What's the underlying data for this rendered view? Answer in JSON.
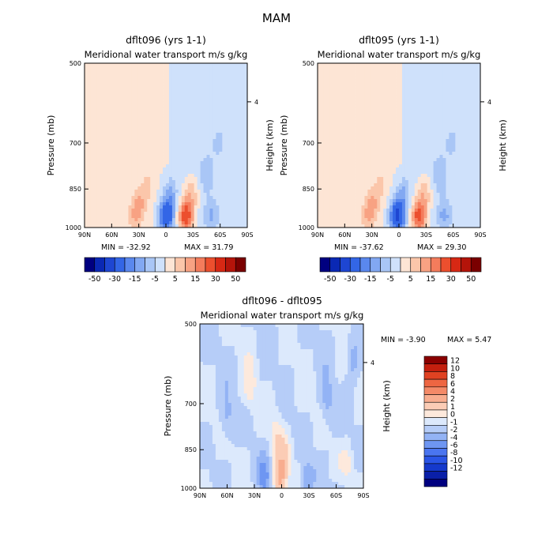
{
  "figure_title": "MAM",
  "colors": {
    "top_scale": [
      "#000080",
      "#0a28b4",
      "#1e46d2",
      "#3366e6",
      "#5a88ee",
      "#82a8f2",
      "#a9c6f6",
      "#cfe1fb",
      "#fde5d5",
      "#fbc6aa",
      "#f8a283",
      "#f47c5c",
      "#ec4f2e",
      "#d72814",
      "#b4140a",
      "#7a0000"
    ],
    "diff_scale": [
      "#000080",
      "#0a1fa8",
      "#1539cc",
      "#2a55e6",
      "#4a75f0",
      "#6e96f2",
      "#93b3f5",
      "#b6cdf8",
      "#dce9fc",
      "#fde9dc",
      "#fbccb5",
      "#f8ad8f",
      "#f48a68",
      "#ee6642",
      "#e04222",
      "#c41f0e",
      "#8a0000"
    ]
  },
  "chart_data": [
    {
      "type": "heatmap",
      "title": "dflt096 (yrs 1-1)",
      "subtitle": "Meridional water transport m/s g/kg",
      "xlabel": "",
      "ylabel": "Pressure (mb)",
      "ylabel_right": "Height (km)",
      "x_ticks": [
        "90N",
        "60N",
        "30N",
        "0",
        "30S",
        "60S",
        "90S"
      ],
      "y_ticks": [
        "500",
        "700",
        "850",
        "1000"
      ],
      "y_right_ticks": [
        "4"
      ],
      "min_label": "MIN = -32.92",
      "max_label": "MAX = 31.79",
      "colorbar": [
        "-50",
        "-30",
        "-15",
        "-5",
        "5",
        "15",
        "30",
        "50"
      ],
      "features": [
        {
          "lat": 34,
          "p": 950,
          "value": 10
        },
        {
          "lat": 28,
          "p": 900,
          "value": 8
        },
        {
          "lat": 20,
          "p": 830,
          "value": 5
        },
        {
          "lat": 0,
          "p": 955,
          "value": -30
        },
        {
          "lat": -4,
          "p": 870,
          "value": -10
        },
        {
          "lat": -22,
          "p": 955,
          "value": 28
        },
        {
          "lat": -28,
          "p": 870,
          "value": 10
        },
        {
          "lat": -45,
          "p": 800,
          "value": -8
        },
        {
          "lat": -50,
          "p": 950,
          "value": -9
        },
        {
          "lat": -58,
          "p": 700,
          "value": -4
        },
        {
          "lat": -80,
          "p": 960,
          "value": 2
        }
      ]
    },
    {
      "type": "heatmap",
      "title": "dflt095 (yrs 1-1)",
      "subtitle": "Meridional water transport m/s g/kg",
      "xlabel": "",
      "ylabel": "Pressure (mb)",
      "ylabel_right": "Height (km)",
      "x_ticks": [
        "90N",
        "60N",
        "30N",
        "0",
        "30S",
        "60S",
        "90S"
      ],
      "y_ticks": [
        "500",
        "700",
        "850",
        "1000"
      ],
      "y_right_ticks": [
        "4"
      ],
      "min_label": "MIN = -37.62",
      "max_label": "MAX = 29.30",
      "colorbar": [
        "-50",
        "-30",
        "-15",
        "-5",
        "5",
        "15",
        "30",
        "50"
      ],
      "features": [
        {
          "lat": 34,
          "p": 950,
          "value": 10
        },
        {
          "lat": 28,
          "p": 900,
          "value": 8
        },
        {
          "lat": 20,
          "p": 830,
          "value": 5
        },
        {
          "lat": 2,
          "p": 955,
          "value": -35
        },
        {
          "lat": -4,
          "p": 870,
          "value": -10
        },
        {
          "lat": -22,
          "p": 955,
          "value": 26
        },
        {
          "lat": -28,
          "p": 870,
          "value": 10
        },
        {
          "lat": -45,
          "p": 800,
          "value": -8
        },
        {
          "lat": -50,
          "p": 950,
          "value": -10
        },
        {
          "lat": -58,
          "p": 700,
          "value": -4
        },
        {
          "lat": -80,
          "p": 960,
          "value": 2
        }
      ]
    },
    {
      "type": "heatmap",
      "title": "dflt096 - dflt095",
      "subtitle": "Meridional water transport m/s g/kg",
      "xlabel": "",
      "ylabel": "Pressure (mb)",
      "ylabel_right": "Height (km)",
      "x_ticks": [
        "90N",
        "60N",
        "30N",
        "0",
        "30S",
        "60S",
        "90S"
      ],
      "y_ticks": [
        "500",
        "700",
        "850",
        "1000"
      ],
      "y_right_ticks": [
        "4"
      ],
      "min_label": "MIN = -3.90",
      "max_label": "MAX = 5.47",
      "colorbar": [
        "12",
        "10",
        "8",
        "6",
        "4",
        "2",
        "1",
        "0",
        "-1",
        "-2",
        "-4",
        "-6",
        "-8",
        "-10",
        "-12"
      ],
      "features": [
        {
          "lat": 2,
          "p": 960,
          "value": 5
        },
        {
          "lat": -3,
          "p": 880,
          "value": 2
        },
        {
          "lat": 5,
          "p": 800,
          "value": 1.5
        },
        {
          "lat": 20,
          "p": 960,
          "value": -3
        },
        {
          "lat": -28,
          "p": 960,
          "value": -2
        },
        {
          "lat": 60,
          "p": 750,
          "value": -1.5
        },
        {
          "lat": -50,
          "p": 700,
          "value": -1.5
        },
        {
          "lat": -72,
          "p": 900,
          "value": 1.2
        },
        {
          "lat": 35,
          "p": 650,
          "value": 1.5
        },
        {
          "lat": -78,
          "p": 580,
          "value": -1.5
        }
      ]
    }
  ]
}
